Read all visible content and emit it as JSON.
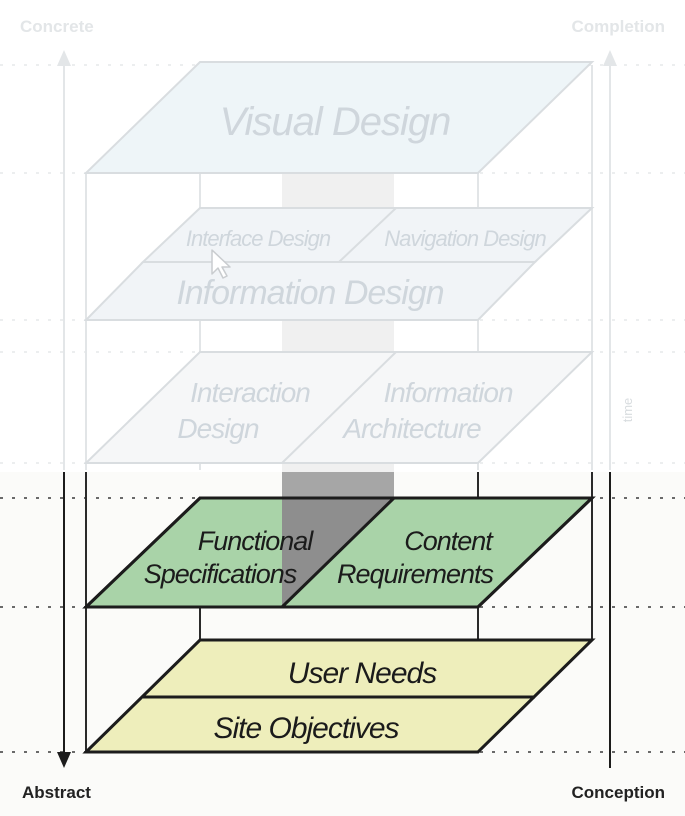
{
  "axis_labels": {
    "top_left": "Concrete",
    "top_right": "Completion",
    "bottom_left": "Abstract",
    "bottom_right": "Conception",
    "time": "time"
  },
  "planes": {
    "visual": {
      "label": "Visual Design"
    },
    "skeleton": {
      "interface": "Interface Design",
      "navigation": "Navigation Design",
      "information": "Information Design"
    },
    "structure": {
      "interaction_line1": "Interaction",
      "interaction_line2": "Design",
      "architecture_line1": "Information",
      "architecture_line2": "Architecture"
    },
    "scope": {
      "functional_line1": "Functional",
      "functional_line2": "Specifications",
      "content_line1": "Content",
      "content_line2": "Requirements"
    },
    "strategy": {
      "user_needs": "User Needs",
      "site_objectives": "Site Objectives"
    }
  },
  "colors": {
    "visual_fill": "#eef5f8",
    "skeleton_fill": "#f1f4f7",
    "structure_fill": "#f6f7f8",
    "scope_fill": "#a9d3a8",
    "strategy_fill": "#eeeebb",
    "active_stroke": "#1c1c1c",
    "faded_stroke": "#d9dde0",
    "faded_text": "#cfd6dc",
    "shaft_dark": "#8e8e8e",
    "shaft_light": "#f0f0f0"
  }
}
